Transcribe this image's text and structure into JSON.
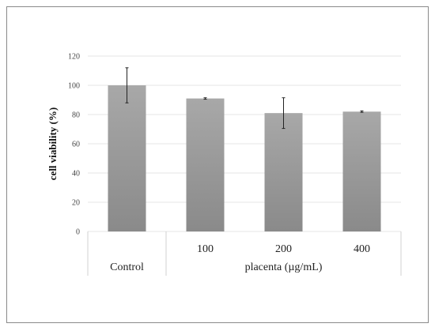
{
  "chart_data": {
    "type": "bar",
    "categories": [
      "Control",
      "100",
      "200",
      "400"
    ],
    "values": [
      100,
      91,
      81,
      82
    ],
    "error": [
      12,
      0.5,
      10.5,
      0.5
    ],
    "group_label": "placenta (µg/mL)",
    "grouped_categories": [
      "100",
      "200",
      "400"
    ],
    "xlabel": "",
    "ylabel": "cell viability (%)",
    "ylim": [
      0,
      120
    ],
    "yticks": [
      "0",
      "20",
      "40",
      "60",
      "80",
      "100",
      "120"
    ],
    "grid": true,
    "legend": "none",
    "bar_color_top": "#a8a8a8",
    "bar_color_bottom": "#8a8a8a"
  }
}
